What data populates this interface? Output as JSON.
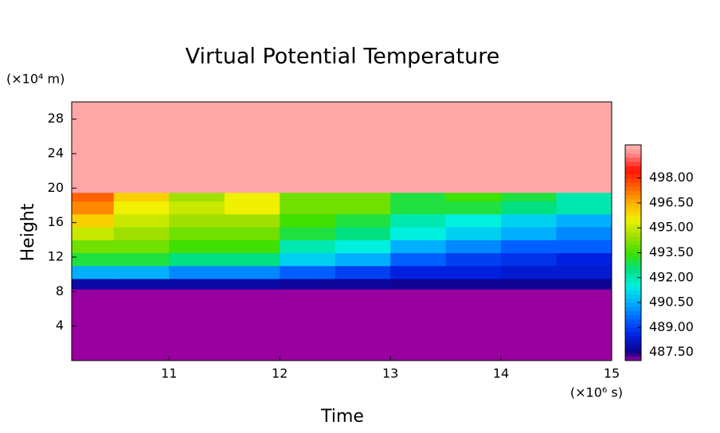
{
  "chart_data": {
    "type": "heatmap",
    "title": "Virtual Potential Temperature",
    "xlabel": "Time",
    "ylabel": "Height",
    "x_unit": "(×10⁶ s)",
    "y_unit": "(×10⁴ m)",
    "xlim": [
      10.12,
      15
    ],
    "xticks": [
      11,
      12,
      13,
      14,
      15
    ],
    "ylim": [
      0,
      30
    ],
    "yticks": [
      4,
      8,
      12,
      16,
      20,
      24,
      28
    ],
    "x_edges": [
      10.12,
      10.5,
      11,
      11.5,
      12,
      12.5,
      13,
      13.5,
      14,
      14.5,
      15
    ],
    "y_edges": [
      0,
      8.3,
      9.5,
      11,
      12.5,
      14,
      15.5,
      17,
      18.5,
      19.5,
      30
    ],
    "z": [
      [
        487,
        487,
        487,
        487,
        487,
        487,
        487,
        487,
        487,
        487
      ],
      [
        487.8,
        487.8,
        487.8,
        487.8,
        487.7,
        487.7,
        487.6,
        487.6,
        487.6,
        487.6
      ],
      [
        490.5,
        490.5,
        490,
        490,
        489.5,
        489,
        488.5,
        488.5,
        488.3,
        488.3
      ],
      [
        493,
        493,
        492.5,
        492.5,
        491,
        490.5,
        489.5,
        489,
        488.8,
        488.5
      ],
      [
        494,
        494,
        493.5,
        493.5,
        492,
        491.5,
        490.5,
        490,
        489.5,
        489.5
      ],
      [
        495,
        494.5,
        494,
        494,
        493,
        492.5,
        491.5,
        491,
        490.5,
        490
      ],
      [
        496,
        495,
        494.5,
        494.5,
        493.5,
        493,
        492,
        491.5,
        491,
        490.5
      ],
      [
        497,
        495.5,
        495,
        495.5,
        494,
        494,
        493,
        493,
        492.5,
        492
      ],
      [
        497.5,
        496,
        494.5,
        495.5,
        494,
        494,
        493,
        493.5,
        493,
        492
      ],
      [
        499.8,
        499.8,
        499.8,
        499.8,
        499.8,
        499.8,
        499.8,
        499.8,
        499.8,
        499.8
      ]
    ],
    "clim": [
      487,
      500
    ],
    "cticks": [
      {
        "value": 487.5,
        "label": "487.50"
      },
      {
        "value": 489,
        "label": "489.00"
      },
      {
        "value": 490.5,
        "label": "490.50"
      },
      {
        "value": 492,
        "label": "492.00"
      },
      {
        "value": 493.5,
        "label": "493.50"
      },
      {
        "value": 495,
        "label": "495.00"
      },
      {
        "value": 496.5,
        "label": "496.50"
      },
      {
        "value": 498,
        "label": "498.00"
      }
    ],
    "colormap": [
      {
        "value": 487,
        "color": "#9a00a0"
      },
      {
        "value": 487.5,
        "color": "#10008a"
      },
      {
        "value": 488.5,
        "color": "#0020e0"
      },
      {
        "value": 489.5,
        "color": "#0060ff"
      },
      {
        "value": 490.5,
        "color": "#00b0ff"
      },
      {
        "value": 491.5,
        "color": "#00f0e0"
      },
      {
        "value": 492.5,
        "color": "#00e080"
      },
      {
        "value": 493.5,
        "color": "#40e000"
      },
      {
        "value": 494.5,
        "color": "#a0e000"
      },
      {
        "value": 495.5,
        "color": "#f0f000"
      },
      {
        "value": 496.5,
        "color": "#ffb000"
      },
      {
        "value": 497.5,
        "color": "#ff6000"
      },
      {
        "value": 498.5,
        "color": "#ff1000"
      },
      {
        "value": 499.5,
        "color": "#ff9090"
      },
      {
        "value": 500,
        "color": "#ffb6b6"
      }
    ]
  }
}
